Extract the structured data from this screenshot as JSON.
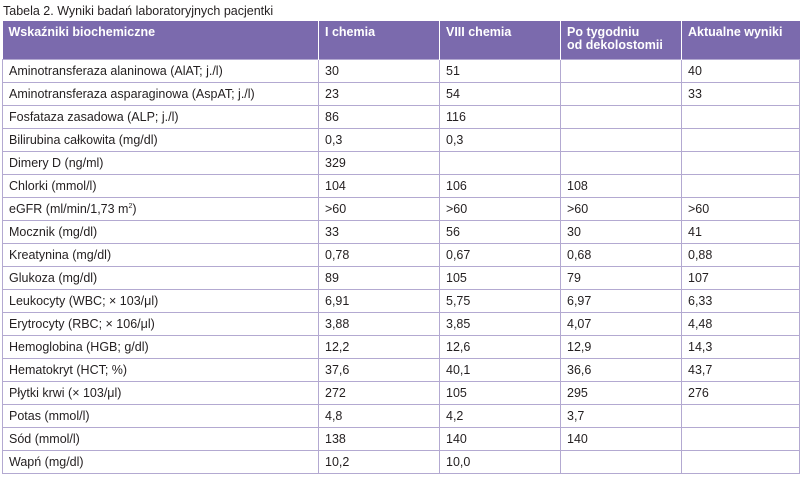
{
  "caption": "Tabela 2. Wyniki badań laboratoryjnych pacjentki",
  "headers": [
    "Wskaźniki biochemiczne",
    "I chemia",
    "VIII chemia",
    "Po tygodniu",
    "Aktualne wyniki"
  ],
  "header_sub": "od dekolostomii",
  "rows": [
    {
      "label": "Aminotransferaza alaninowa (AlAT; j./l)",
      "values": [
        "30",
        "51",
        "",
        "40"
      ]
    },
    {
      "label": "Aminotransferaza asparaginowa (AspAT; j./l)",
      "values": [
        "23",
        "54",
        "",
        "33"
      ]
    },
    {
      "label": "Fosfataza zasadowa (ALP; j./l)",
      "values": [
        "86",
        "116",
        "",
        ""
      ]
    },
    {
      "label": "Bilirubina całkowita (mg/dl)",
      "values": [
        "0,3",
        "0,3",
        "",
        ""
      ]
    },
    {
      "label": "Dimery D (ng/ml)",
      "values": [
        "329",
        "",
        "",
        ""
      ]
    },
    {
      "label": "Chlorki (mmol/l)",
      "values": [
        "104",
        "106",
        "108",
        ""
      ]
    },
    {
      "label": "eGFR (ml/min/1,73 m",
      "label_sup": "2",
      "label_end": ")",
      "values": [
        ">60",
        ">60",
        ">60",
        ">60"
      ]
    },
    {
      "label": "Mocznik (mg/dl)",
      "values": [
        "33",
        "56",
        "30",
        "41"
      ]
    },
    {
      "label": "Kreatynina (mg/dl)",
      "values": [
        "0,78",
        "0,67",
        "0,68",
        "0,88"
      ]
    },
    {
      "label": "Glukoza (mg/dl)",
      "values": [
        "89",
        "105",
        "79",
        "107"
      ]
    },
    {
      "label": "Leukocyty (WBC; × 103/μl)",
      "values": [
        "6,91",
        "5,75",
        "6,97",
        "6,33"
      ]
    },
    {
      "label": "Erytrocyty (RBC; × 106/μl)",
      "values": [
        "3,88",
        "3,85",
        "4,07",
        "4,48"
      ]
    },
    {
      "label": "Hemoglobina (HGB; g/dl)",
      "values": [
        "12,2",
        "12,6",
        "12,9",
        "14,3"
      ]
    },
    {
      "label": "Hematokryt (HCT; %)",
      "values": [
        "37,6",
        "40,1",
        "36,6",
        "43,7"
      ]
    },
    {
      "label": "Płytki krwi (× 103/μl)",
      "values": [
        "272",
        "105",
        "295",
        "276"
      ]
    },
    {
      "label": "Potas (mmol/l)",
      "values": [
        "4,8",
        "4,2",
        "3,7",
        ""
      ]
    },
    {
      "label": "Sód (mmol/l)",
      "values": [
        "138",
        "140",
        "140",
        ""
      ]
    },
    {
      "label": "Wapń (mg/dl)",
      "values": [
        "10,2",
        "10,0",
        "",
        ""
      ]
    }
  ],
  "colors": {
    "header_bg": "#7b6aad",
    "border": "#b3a9d1"
  }
}
